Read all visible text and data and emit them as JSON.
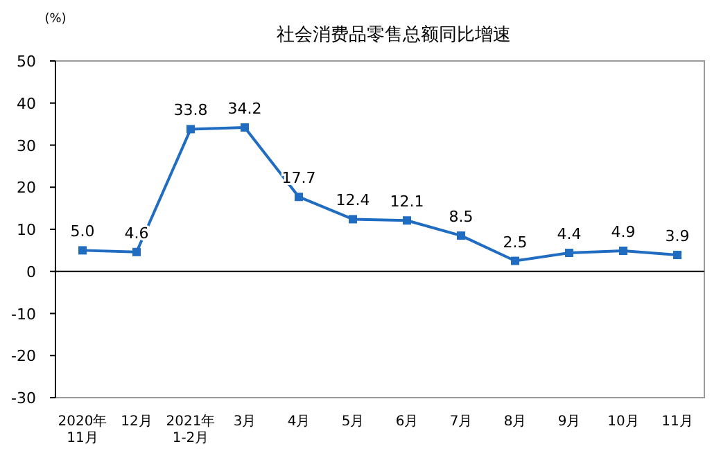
{
  "chart_data": {
    "type": "line",
    "title": "社会消费品零售总额同比增速",
    "ylabel": "(%)",
    "categories": [
      "2020年\n11月",
      "12月",
      "2021年\n1-2月",
      "3月",
      "4月",
      "5月",
      "6月",
      "7月",
      "8月",
      "9月",
      "10月",
      "11月"
    ],
    "series": [
      {
        "color": "#1f6cc0",
        "values": [
          5.0,
          4.6,
          33.8,
          34.2,
          17.7,
          12.4,
          12.1,
          8.5,
          2.5,
          4.4,
          4.9,
          3.9
        ]
      }
    ],
    "ylim": [
      -30,
      50
    ],
    "yticks": [
      -30,
      -20,
      -10,
      0,
      10,
      20,
      30,
      40,
      50
    ],
    "value_labels": [
      "5.0",
      "4.6",
      "33.8",
      "34.2",
      "17.7",
      "12.4",
      "12.1",
      "8.5",
      "2.5",
      "4.4",
      "4.9",
      "3.9"
    ],
    "marker": "square",
    "line_style": "solid"
  }
}
